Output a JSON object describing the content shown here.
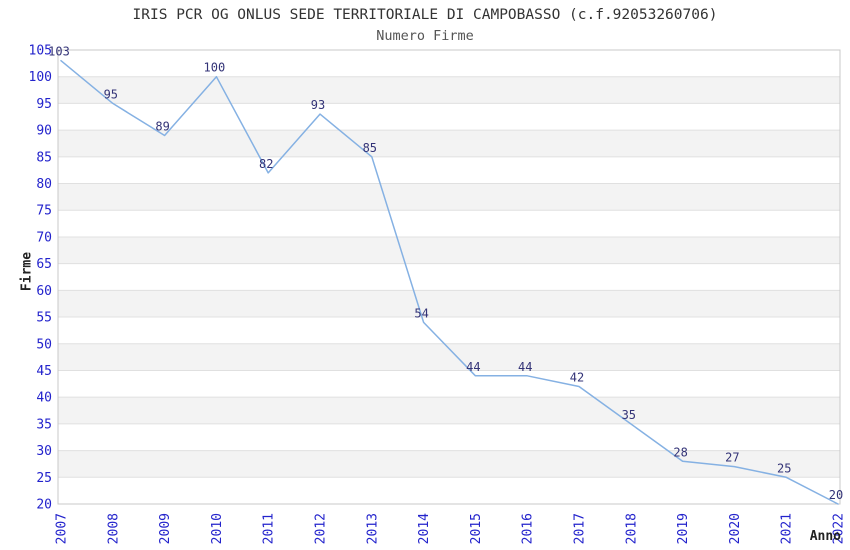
{
  "chart_data": {
    "type": "line",
    "title": "IRIS PCR OG ONLUS SEDE TERRITORIALE DI CAMPOBASSO (c.f.92053260706)",
    "subtitle": "Numero Firme",
    "xlabel": "Anno",
    "ylabel": "Firme",
    "categories": [
      "2007",
      "2008",
      "2009",
      "2010",
      "2011",
      "2012",
      "2013",
      "2014",
      "2015",
      "2016",
      "2017",
      "2018",
      "2019",
      "2020",
      "2021",
      "2022"
    ],
    "series": [
      {
        "name": "Numero Firme",
        "values": [
          103,
          95,
          89,
          100,
          82,
          93,
          85,
          54,
          44,
          44,
          42,
          35,
          28,
          27,
          25,
          20
        ]
      }
    ],
    "point_labels": true,
    "ylim": [
      20,
      105
    ],
    "ytick_step": 5,
    "grid": "horizontal-bands",
    "legend": "none",
    "colors": {
      "line": "#85b1e3",
      "tick_label": "#2323cc",
      "point_label": "#333377",
      "band": "#f3f3f3",
      "gridline": "#e0e0e0",
      "plot_border": "#c8c8c8",
      "title": "#333333",
      "subtitle": "#555555",
      "axis_title": "#222222",
      "background": "#ffffff"
    }
  }
}
